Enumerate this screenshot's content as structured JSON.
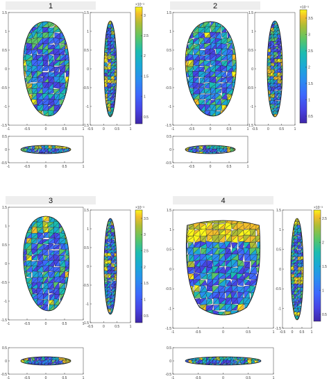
{
  "colors": {
    "cmap": [
      "#3e26a8",
      "#4743e3",
      "#3d68fd",
      "#2a8ef0",
      "#1aa9d6",
      "#1bbcb0",
      "#5ac567",
      "#aebd35",
      "#f2be2b",
      "#f9f619"
    ],
    "title_bg": "#eeeeee",
    "mesh_line": "#1a1a2a"
  },
  "panels": [
    {
      "title": "1",
      "colorbar_exponent": "×10⁻³",
      "colorbar_ticks": [
        "3",
        "2.5",
        "2",
        "1.5",
        "1",
        "0.5"
      ],
      "front_y_ticks": [
        "1.5",
        "1",
        "0.5",
        "0",
        "-0.5",
        "-1",
        "-1.5"
      ],
      "front_x_ticks": [
        "-1",
        "-0.5",
        "0",
        "0.5",
        "1"
      ],
      "side_y_ticks": [
        "1.5",
        "1",
        "0.5",
        "0",
        "-0.5",
        "-1",
        "-1.5"
      ],
      "side_x_ticks": [
        "-0.5",
        "0",
        "0.5",
        "1"
      ],
      "bottom_y_ticks": [
        "0.5",
        "0",
        "-0.5"
      ],
      "bottom_x_ticks": [
        "-1",
        "-0.5",
        "0",
        "0.5",
        "1"
      ]
    },
    {
      "title": "2",
      "colorbar_exponent": "×10⁻³",
      "colorbar_ticks": [
        "3.5",
        "3",
        "2.5",
        "2",
        "1.5",
        "1",
        "0.5"
      ],
      "front_y_ticks": [
        "1.5",
        "1",
        "0.5",
        "0",
        "-0.5",
        "-1",
        "-1.5"
      ],
      "front_x_ticks": [
        "-1",
        "-0.5",
        "0",
        "0.5",
        "1"
      ],
      "side_y_ticks": [
        "1.5",
        "1",
        "0.5",
        "0",
        "-0.5",
        "-1",
        "-1.5"
      ],
      "side_x_ticks": [
        "-0.5",
        "0",
        "0.5",
        "1"
      ],
      "bottom_y_ticks": [
        "0.5",
        "0",
        "-0.5"
      ],
      "bottom_x_ticks": [
        "-1",
        "-0.5",
        "0",
        "0.5",
        "1"
      ]
    },
    {
      "title": "3",
      "colorbar_exponent": "×10⁻³",
      "colorbar_ticks": [
        "3.5",
        "3",
        "2.5",
        "2",
        "1.5",
        "1",
        "0.5"
      ],
      "front_y_ticks": [
        "1.5",
        "1",
        "0.5",
        "0",
        "-0.5",
        "-1",
        "-1.5"
      ],
      "front_x_ticks": [
        "-1",
        "-0.5",
        "0",
        "0.5",
        "1"
      ],
      "side_y_ticks": [
        "1.5",
        "1",
        "0.5",
        "0",
        "-0.5",
        "-1",
        "-1.5"
      ],
      "side_x_ticks": [
        "-0.5",
        "0",
        "0.5",
        "1"
      ],
      "bottom_y_ticks": [
        "0.5",
        "0",
        "-0.5"
      ],
      "bottom_x_ticks": [
        "-1",
        "-0.5",
        "0",
        "0.5",
        "1"
      ]
    },
    {
      "title": "4",
      "colorbar_exponent": "×10⁻³",
      "colorbar_ticks": [
        "2.5",
        "2",
        "1.5",
        "1",
        "0.5"
      ],
      "front_y_ticks": [
        "1.5",
        "1",
        "0.5",
        "0",
        "-0.5",
        "-1",
        "-1.5"
      ],
      "front_x_ticks": [
        "-1",
        "-0.5",
        "0",
        "0.5",
        "1"
      ],
      "side_y_ticks": [
        "1.5",
        "1",
        "0.5",
        "0",
        "-0.5",
        "-1",
        "-1.5"
      ],
      "side_x_ticks": [
        "-0.5",
        "0",
        "0.5",
        "1"
      ],
      "bottom_y_ticks": [
        "0.5",
        "0",
        "-0.5"
      ],
      "bottom_x_ticks": [
        "-1",
        "-0.5",
        "0",
        "0.5",
        "1"
      ]
    }
  ]
}
